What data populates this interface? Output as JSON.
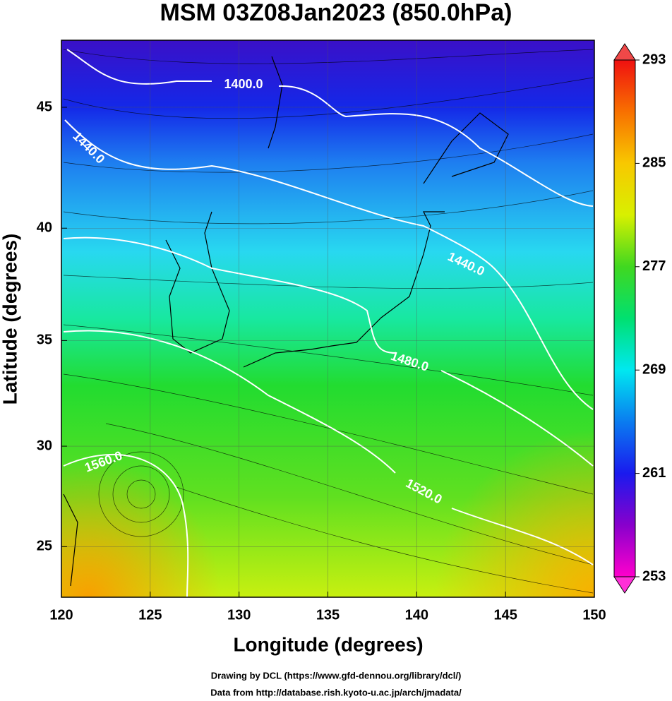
{
  "title": "MSM 03Z08Jan2023 (850.0hPa)",
  "map": {
    "projection": "mercator",
    "xlim": [
      120,
      150
    ],
    "ylim": [
      22.4,
      47.6
    ],
    "xticks": [
      120,
      125,
      130,
      135,
      140,
      145,
      150
    ],
    "yticks": [
      25,
      30,
      35,
      40,
      45
    ],
    "xlabel": "Longitude (degrees)",
    "ylabel": "Latitude  (degrees)",
    "grid": true,
    "contour_labels": [
      "1400.0",
      "1440.0",
      "1440.0",
      "1480.0",
      "1520.0",
      "1560.0"
    ]
  },
  "colorbar": {
    "range": [
      253,
      293
    ],
    "ticks": [
      253,
      261,
      269,
      277,
      285,
      293
    ],
    "colors": [
      "#ff00cc",
      "#8800cc",
      "#1a1aee",
      "#0a7cf0",
      "#00e8f0",
      "#00e070",
      "#40d820",
      "#d8f000",
      "#f8c800",
      "#f87000",
      "#f01010"
    ]
  },
  "credits": [
    "Drawing by DCL (https://www.gfd-dennou.org/library/dcl/)",
    "Data from http://database.rish.kyoto-u.ac.jp/arch/jmadata/"
  ]
}
